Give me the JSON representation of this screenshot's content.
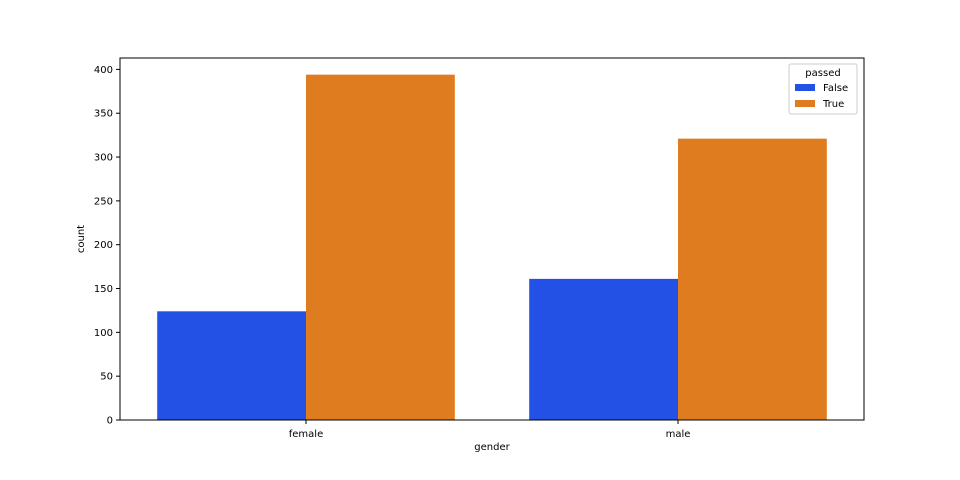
{
  "chart_data": {
    "type": "bar",
    "title": "",
    "xlabel": "gender",
    "ylabel": "count",
    "categories": [
      "female",
      "male"
    ],
    "series": [
      {
        "name": "False",
        "color": "#2351e6",
        "values": [
          124,
          161
        ]
      },
      {
        "name": "True",
        "color": "#e07c20",
        "values": [
          394,
          321
        ]
      }
    ],
    "ylim": [
      0,
      413
    ],
    "yticks": [
      0,
      50,
      100,
      150,
      200,
      250,
      300,
      350,
      400
    ],
    "grid": false,
    "legend": {
      "title": "passed",
      "placement": "top-right"
    }
  }
}
